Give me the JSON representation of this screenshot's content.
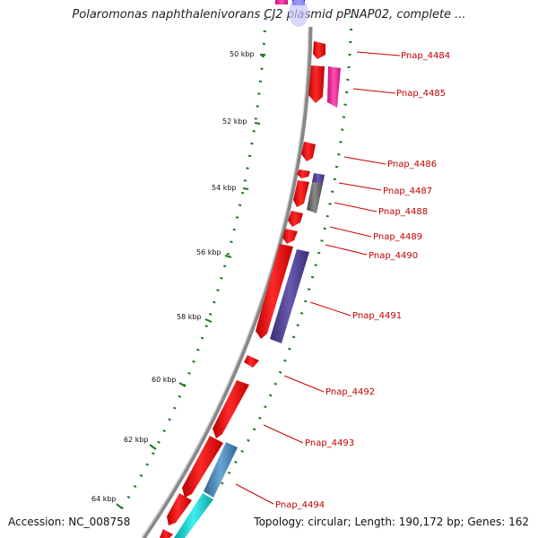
{
  "header": {
    "title": "Polaromonas naphthalenivorans CJ2 plasmid pPNAP02, complete ..."
  },
  "footer": {
    "accession": "Accession: NC_008758",
    "summary": "Topology: circular; Length: 190,172 bp; Genes: 162"
  },
  "scale": {
    "ticks": [
      {
        "label": "50 kbp"
      },
      {
        "label": "52 kbp"
      },
      {
        "label": "54 kbp"
      },
      {
        "label": "56 kbp"
      },
      {
        "label": "58 kbp"
      },
      {
        "label": "60 kbp"
      },
      {
        "label": "62 kbp"
      },
      {
        "label": "64 kbp"
      }
    ]
  },
  "genes": [
    {
      "label": "Pnap_4484"
    },
    {
      "label": "Pnap_4485"
    },
    {
      "label": "Pnap_4486"
    },
    {
      "label": "Pnap_4487"
    },
    {
      "label": "Pnap_4488"
    },
    {
      "label": "Pnap_4489"
    },
    {
      "label": "Pnap_4490"
    },
    {
      "label": "Pnap_4491"
    },
    {
      "label": "Pnap_4492"
    },
    {
      "label": "Pnap_4493"
    },
    {
      "label": "Pnap_4494"
    }
  ],
  "colors": {
    "cds": "#ff0000",
    "label": "#c00000",
    "backbone": "#888888",
    "gc_dots": "#1a7a1a",
    "magenta": "#ff2fa0",
    "slate": "#5a4a9a",
    "gray": "#707070",
    "steel": "#4a8ab8",
    "cyan": "#19d0d0"
  }
}
